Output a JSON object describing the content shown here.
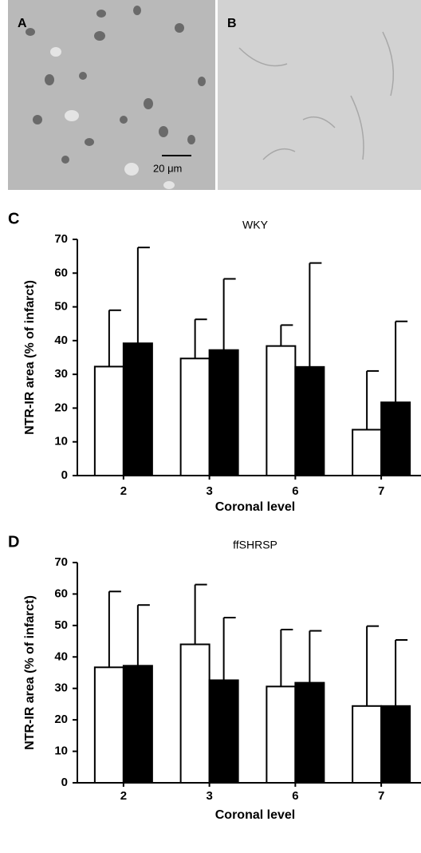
{
  "panels": [
    {
      "label": "A",
      "scale_bar": "20 μm"
    },
    {
      "label": "B"
    }
  ],
  "chart_data": [
    {
      "type": "bar",
      "panel_label": "C",
      "title": "WKY",
      "ylabel": "NTR-IR area  (% of infarct)",
      "xlabel": "Coronal level",
      "categories": [
        "2",
        "3",
        "6",
        "7"
      ],
      "series": [
        {
          "color": "#ffffff",
          "values": [
            32.3,
            34.7,
            38.4,
            13.6
          ],
          "errors": [
            16.7,
            11.6,
            6.2,
            17.4
          ]
        },
        {
          "color": "#000000",
          "values": [
            39.2,
            37.2,
            32.2,
            21.7
          ],
          "errors": [
            28.4,
            21.1,
            30.8,
            24
          ]
        }
      ],
      "ylim": [
        0,
        70
      ],
      "yticks": [
        0,
        10,
        20,
        30,
        40,
        50,
        60,
        70
      ]
    },
    {
      "type": "bar",
      "panel_label": "D",
      "title": "ffSHRSP",
      "ylabel": "NTR-IR area  (% of infarct)",
      "xlabel": "Coronal level",
      "categories": [
        "2",
        "3",
        "6",
        "7"
      ],
      "series": [
        {
          "color": "#ffffff",
          "values": [
            36.7,
            44,
            30.6,
            24.4
          ],
          "errors": [
            24.1,
            19,
            18.1,
            25.4
          ]
        },
        {
          "color": "#000000",
          "values": [
            37.2,
            32.6,
            31.8,
            24.4
          ],
          "errors": [
            19.3,
            19.9,
            16.5,
            21
          ]
        }
      ],
      "ylim": [
        0,
        70
      ],
      "yticks": [
        0,
        10,
        20,
        30,
        40,
        50,
        60,
        70
      ]
    }
  ]
}
